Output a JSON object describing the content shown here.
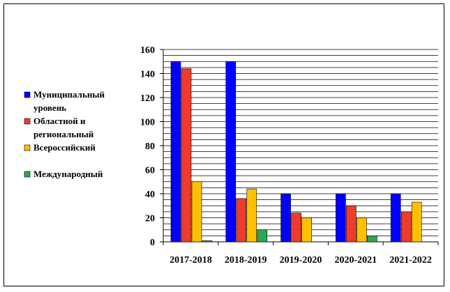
{
  "chart_data": {
    "type": "bar",
    "categories": [
      "2017-2018",
      "2018-2019",
      "2019-2020",
      "2020-2021",
      "2021-2022"
    ],
    "series": [
      {
        "name": "Муниципальный уровень",
        "color": "#0000FF",
        "values": [
          150,
          150,
          40,
          40,
          40
        ]
      },
      {
        "name": "Областной и региональный",
        "color": "#EE3B2C",
        "values": [
          144,
          36,
          24,
          30,
          25
        ]
      },
      {
        "name": "Всероссийский",
        "color": "#FFC000",
        "values": [
          50,
          44,
          20,
          20,
          33
        ]
      },
      {
        "name": "Международный",
        "color": "#2EA652",
        "values": [
          1,
          10,
          0,
          5,
          0
        ]
      }
    ],
    "ylim": [
      0,
      160
    ],
    "yticks": [
      0,
      20,
      40,
      60,
      80,
      100,
      120,
      140,
      160
    ],
    "grid": true,
    "legend_position": "left",
    "title": "",
    "xlabel": "",
    "ylabel": ""
  }
}
